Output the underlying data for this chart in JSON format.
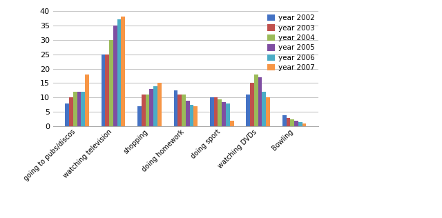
{
  "categories": [
    "going to pubs/discos",
    "watching television",
    "shopping",
    "doing homework",
    "doing sport",
    "watching DVDs",
    "Bowling"
  ],
  "years": [
    "year 2002",
    "year 2003",
    "year 2004",
    "year 2005",
    "year 2006",
    "year 2007"
  ],
  "colors": [
    "#4472c4",
    "#c0504d",
    "#9bbb59",
    "#7f4ea2",
    "#4bacc6",
    "#f79646"
  ],
  "values": {
    "year 2002": [
      8,
      25,
      7,
      12.5,
      10,
      11,
      4
    ],
    "year 2003": [
      10,
      25,
      11,
      11,
      10,
      15,
      3
    ],
    "year 2004": [
      12,
      30,
      11,
      11,
      9.5,
      18,
      2.5
    ],
    "year 2005": [
      12,
      35,
      13,
      9,
      8.5,
      17,
      2
    ],
    "year 2006": [
      12,
      37,
      14,
      7.5,
      8,
      12,
      1.5
    ],
    "year 2007": [
      18,
      38,
      15,
      7,
      2,
      10,
      1
    ]
  },
  "ylim": [
    0,
    40
  ],
  "yticks": [
    0,
    5,
    10,
    15,
    20,
    25,
    30,
    35,
    40
  ],
  "background_color": "#ffffff",
  "bar_width": 0.11,
  "figsize": [
    6.4,
    3.16
  ],
  "dpi": 100
}
